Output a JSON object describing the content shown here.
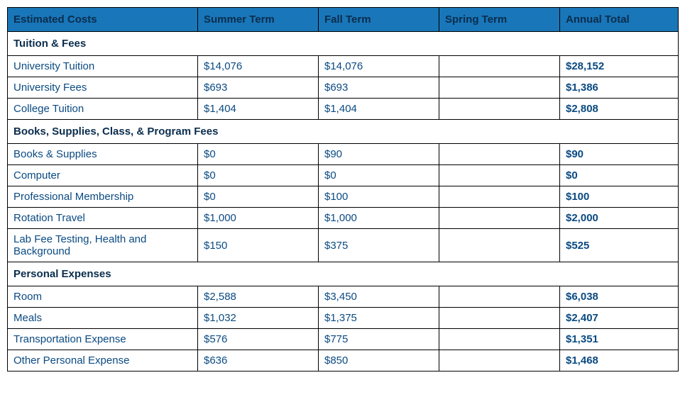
{
  "colors": {
    "header_bg": "#1976b8",
    "header_fg": "#0a2d4d",
    "section_fg": "#0a2d4d",
    "cell_fg": "#0a4a82"
  },
  "columns": [
    "Estimated Costs",
    "Summer Term",
    "Fall Term",
    "Spring Term",
    "Annual Total"
  ],
  "sections": [
    {
      "title": "Tuition & Fees",
      "rows": [
        {
          "label": "University Tuition",
          "summer": "$14,076",
          "fall": "$14,076",
          "spring": "",
          "annual": "$28,152"
        },
        {
          "label": "University Fees",
          "summer": "$693",
          "fall": "$693",
          "spring": "",
          "annual": "$1,386"
        },
        {
          "label": "College Tuition",
          "summer": "$1,404",
          "fall": "$1,404",
          "spring": "",
          "annual": "$2,808"
        }
      ]
    },
    {
      "title": "Books, Supplies, Class, & Program Fees",
      "rows": [
        {
          "label": "Books & Supplies",
          "summer": "$0",
          "fall": "$90",
          "spring": "",
          "annual": "$90"
        },
        {
          "label": "Computer",
          "summer": "$0",
          "fall": "$0",
          "spring": "",
          "annual": "$0"
        },
        {
          "label": "Professional Membership",
          "summer": "$0",
          "fall": "$100",
          "spring": "",
          "annual": "$100"
        },
        {
          "label": "Rotation Travel",
          "summer": "$1,000",
          "fall": "$1,000",
          "spring": "",
          "annual": "$2,000"
        },
        {
          "label": "Lab Fee Testing, Health and Background",
          "summer": "$150",
          "fall": "$375",
          "spring": "",
          "annual": "$525"
        }
      ]
    },
    {
      "title": "Personal Expenses",
      "rows": [
        {
          "label": "Room",
          "summer": "$2,588",
          "fall": "$3,450",
          "spring": "",
          "annual": "$6,038"
        },
        {
          "label": "Meals",
          "summer": "$1,032",
          "fall": "$1,375",
          "spring": "",
          "annual": "$2,407"
        },
        {
          "label": "Transportation Expense",
          "summer": "$576",
          "fall": "$775",
          "spring": "",
          "annual": "$1,351"
        },
        {
          "label": "Other Personal Expense",
          "summer": "$636",
          "fall": "$850",
          "spring": "",
          "annual": "$1,468"
        }
      ]
    }
  ]
}
